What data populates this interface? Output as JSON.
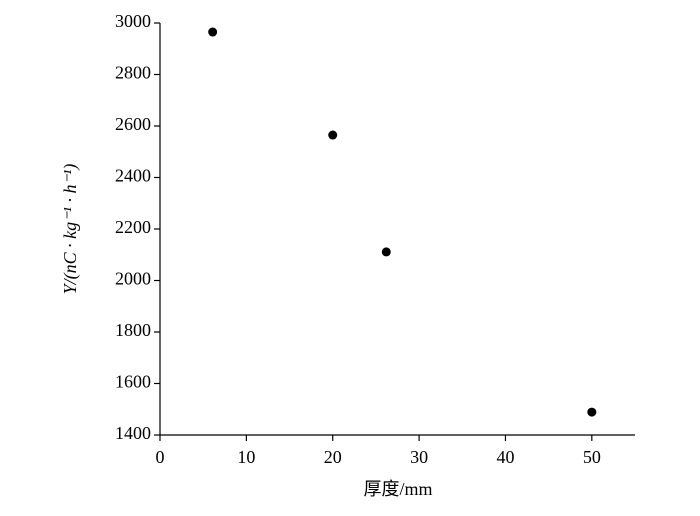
{
  "chart_data": {
    "type": "scatter",
    "x_label": "厚度/mm",
    "y_label": "Y/(nC · kg⁻¹ · h⁻¹)",
    "x": [
      6.1,
      20.0,
      26.2,
      50.0
    ],
    "values": [
      2965,
      2565,
      2111,
      1489
    ],
    "color": "#000000",
    "xlim": [
      0,
      55
    ],
    "xticks": [
      0,
      10,
      20,
      30,
      40,
      50
    ],
    "ylim": [
      1400,
      3000
    ],
    "yticks": [
      1400,
      1600,
      1800,
      2000,
      2200,
      2400,
      2600,
      2800,
      3000
    ],
    "grid": false
  }
}
